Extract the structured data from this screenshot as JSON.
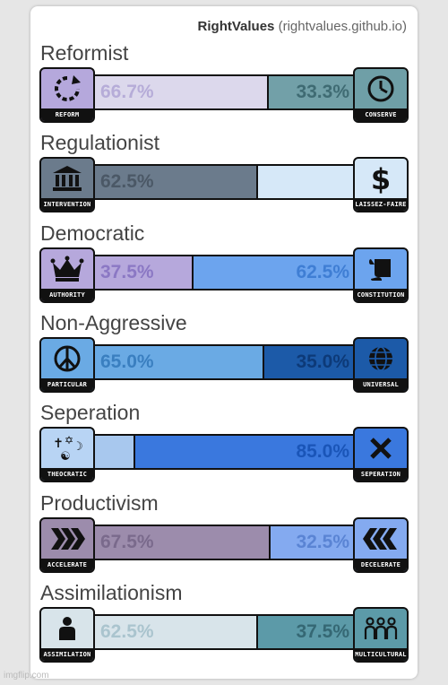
{
  "brand": {
    "name": "RightValues",
    "url": "(rightvalues.github.io)"
  },
  "watermark": "imgflip.com",
  "axes": [
    {
      "title": "Reformist",
      "left_label": "REFORM",
      "right_label": "CONSERVE",
      "left_icon": "circular-arrow-icon",
      "right_icon": "clock-icon",
      "left_value": 66.7,
      "right_value": 33.3,
      "left_text": "66.7%",
      "right_text": "33.3%",
      "left_color": "#dcd8ec",
      "right_color": "#72a0a8",
      "left_text_color": "#b6acd8",
      "right_text_color": "#3f6b73",
      "left_icon_bg": "#b5a8dc",
      "right_icon_bg": "#6f9fa7"
    },
    {
      "title": "Regulationist",
      "left_label": "INTERVENTION",
      "right_label": "LAISSEZ-FAIRE",
      "left_icon": "government-building-icon",
      "right_icon": "dollar-icon",
      "left_value": 62.5,
      "right_value": 37.5,
      "left_text": "62.5%",
      "right_text": "",
      "left_color": "#6b7b8c",
      "right_color": "#d6e8f8",
      "left_text_color": "#4b5866",
      "right_text_color": "#aac8ec",
      "left_icon_bg": "#6b7b8c",
      "right_icon_bg": "#d6e8f8"
    },
    {
      "title": "Democratic",
      "left_label": "AUTHORITY",
      "right_label": "CONSTITUTION",
      "left_icon": "crown-icon",
      "right_icon": "scroll-icon",
      "left_value": 37.5,
      "right_value": 62.5,
      "left_text": "37.5%",
      "right_text": "62.5%",
      "left_color": "#b6a8dc",
      "right_color": "#6ca4ee",
      "left_text_color": "#8b78c4",
      "right_text_color": "#3f7ed4",
      "left_icon_bg": "#b6a8dc",
      "right_icon_bg": "#6ca4ee"
    },
    {
      "title": "Non-Aggressive",
      "left_label": "PARTICULAR",
      "right_label": "UNIVERSAL",
      "left_icon": "peace-icon",
      "right_icon": "globe-icon",
      "left_value": 65.0,
      "right_value": 35.0,
      "left_text": "65.0%",
      "right_text": "35.0%",
      "left_color": "#6aaae4",
      "right_color": "#1c5aa8",
      "left_text_color": "#3a7fc0",
      "right_text_color": "#0d3a78",
      "left_icon_bg": "#6aaae4",
      "right_icon_bg": "#1c5aa8"
    },
    {
      "title": "Seperation",
      "left_label": "THEOCRATIC",
      "right_label": "SEPERATION",
      "left_icon": "religious-symbols-icon",
      "right_icon": "x-icon",
      "left_value": 15.0,
      "right_value": 85.0,
      "left_text": "",
      "right_text": "85.0%",
      "left_color": "#a8c8ee",
      "right_color": "#3a78de",
      "left_text_color": "#6c98d4",
      "right_text_color": "#1a55b8",
      "left_icon_bg": "#b8d4f4",
      "right_icon_bg": "#3a78de"
    },
    {
      "title": "Productivism",
      "left_label": "ACCELERATE",
      "right_label": "DECELERATE",
      "left_icon": "fast-forward-icon",
      "right_icon": "rewind-icon",
      "left_value": 67.5,
      "right_value": 32.5,
      "left_text": "67.5%",
      "right_text": "32.5%",
      "left_color": "#9c8cac",
      "right_color": "#84aaf0",
      "left_text_color": "#7a6a8c",
      "right_text_color": "#5a84d4",
      "left_icon_bg": "#9c8cac",
      "right_icon_bg": "#84aaf0"
    },
    {
      "title": "Assimilationism",
      "left_label": "ASSIMILATION",
      "right_label": "MULTICULTURAL",
      "left_icon": "person-icon",
      "right_icon": "group-icon",
      "left_value": 62.5,
      "right_value": 37.5,
      "left_text": "62.5%",
      "right_text": "37.5%",
      "left_color": "#d8e4ea",
      "right_color": "#5c9aa8",
      "left_text_color": "#aac4ce",
      "right_text_color": "#356874",
      "left_icon_bg": "#d8e4ea",
      "right_icon_bg": "#5c9aa8"
    }
  ]
}
